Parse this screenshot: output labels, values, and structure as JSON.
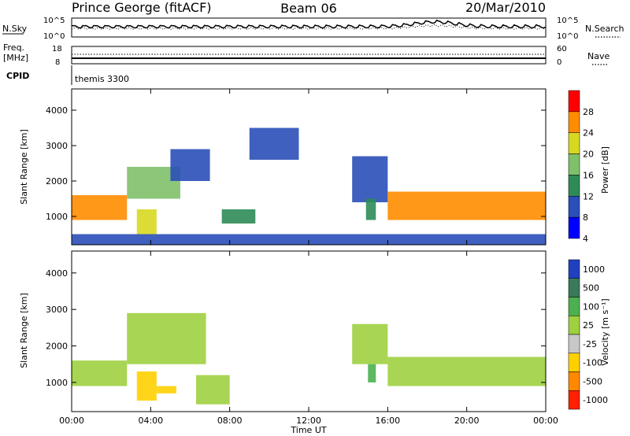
{
  "header": {
    "station": "Prince George (fitACF)",
    "beam": "Beam 06",
    "date": "20/Mar/2010"
  },
  "top_panels": {
    "nsky_label": "N.Sky",
    "nsky_ticks": [
      "10^5",
      "10^0"
    ],
    "nsearch_label": "N.Search",
    "nsearch_ticks": [
      "10^5",
      "10^0"
    ],
    "freq_label": "Freq.",
    "freq_unit": "[MHz]",
    "freq_ticks": [
      "18",
      "8"
    ],
    "nave_label": "Nave",
    "nave_ticks": [
      "60",
      "0"
    ],
    "cpid_label": "CPID",
    "cpid_value": "themis 3300"
  },
  "chart_data": [
    {
      "type": "heatmap",
      "name": "power",
      "ylabel": "Slant Range [km]",
      "yticks": [
        "1000",
        "2000",
        "3000",
        "4000"
      ],
      "ylim": [
        200,
        4600
      ],
      "colorbar_label": "Power [dB]",
      "colorbar_ticks": [
        "4",
        "8",
        "12",
        "16",
        "20",
        "24",
        "28"
      ],
      "colors": [
        "#0000ff",
        "#2a4fb8",
        "#2e8b57",
        "#7fc06a",
        "#d8d820",
        "#ff8c00",
        "#ff0000"
      ],
      "regions": [
        {
          "x0": 0.0,
          "x1": 2.8,
          "y0": 900,
          "y1": 1600,
          "value": 24
        },
        {
          "x0": 2.8,
          "x1": 5.5,
          "y0": 1500,
          "y1": 2400,
          "value": 14
        },
        {
          "x0": 5.0,
          "x1": 7.0,
          "y0": 2000,
          "y1": 2900,
          "value": 8
        },
        {
          "x0": 3.3,
          "x1": 4.3,
          "y0": 500,
          "y1": 1200,
          "value": 20
        },
        {
          "x0": 7.6,
          "x1": 9.3,
          "y0": 800,
          "y1": 1200,
          "value": 10
        },
        {
          "x0": 9.0,
          "x1": 11.5,
          "y0": 2600,
          "y1": 3500,
          "value": 6
        },
        {
          "x0": 14.2,
          "x1": 16.0,
          "y0": 1400,
          "y1": 2700,
          "value": 8
        },
        {
          "x0": 14.9,
          "x1": 15.4,
          "y0": 900,
          "y1": 1500,
          "value": 10
        },
        {
          "x0": 16.0,
          "x1": 24.0,
          "y0": 900,
          "y1": 1700,
          "value": 24
        },
        {
          "x0": 0.0,
          "x1": 24.0,
          "y0": 200,
          "y1": 500,
          "value": 6
        }
      ],
      "xlim": [
        0,
        24
      ]
    },
    {
      "type": "heatmap",
      "name": "velocity",
      "ylabel": "Slant Range [km]",
      "yticks": [
        "1000",
        "2000",
        "3000",
        "4000"
      ],
      "ylim": [
        200,
        4600
      ],
      "colorbar_label": "Velocity [m s⁻¹]",
      "colorbar_ticks": [
        "1000",
        "500",
        "100",
        "25",
        "-25",
        "-100",
        "-500",
        "-1000"
      ],
      "colors": [
        "#2040c0",
        "#3a7a5a",
        "#4caf50",
        "#9fd040",
        "#c8c8c8",
        "#ffd000",
        "#ff8800",
        "#ff2000"
      ],
      "regions": [
        {
          "x0": 0.0,
          "x1": 2.8,
          "y0": 900,
          "y1": 1600,
          "value": 0
        },
        {
          "x0": 2.8,
          "x1": 6.8,
          "y0": 1500,
          "y1": 2900,
          "value": 0
        },
        {
          "x0": 3.3,
          "x1": 4.3,
          "y0": 500,
          "y1": 1300,
          "value": -300
        },
        {
          "x0": 4.3,
          "x1": 5.3,
          "y0": 700,
          "y1": 900,
          "value": -300
        },
        {
          "x0": 6.3,
          "x1": 8.0,
          "y0": 400,
          "y1": 1200,
          "value": 0
        },
        {
          "x0": 14.2,
          "x1": 16.0,
          "y0": 1500,
          "y1": 2600,
          "value": 0
        },
        {
          "x0": 15.0,
          "x1": 15.4,
          "y0": 1000,
          "y1": 1500,
          "value": 60
        },
        {
          "x0": 16.0,
          "x1": 24.0,
          "y0": 900,
          "y1": 1700,
          "value": 0
        }
      ],
      "xlim": [
        0,
        24
      ]
    }
  ],
  "xaxis": {
    "label": "Time UT",
    "ticks": [
      "00:00",
      "04:00",
      "08:00",
      "12:00",
      "16:00",
      "20:00",
      "00:00"
    ]
  }
}
